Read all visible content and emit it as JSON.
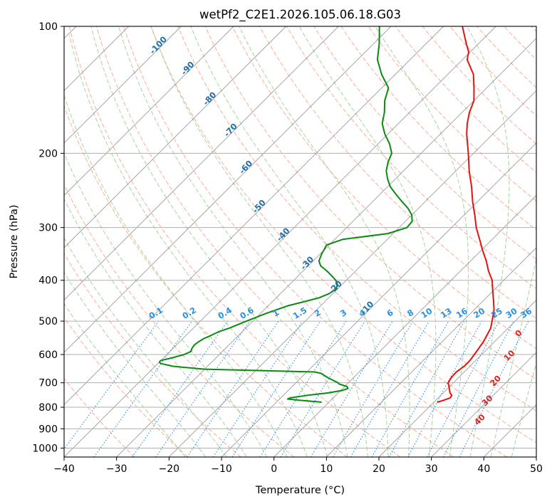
{
  "chart_data": {
    "type": "line",
    "title": "wetPf2_C2E1.2026.105.06.18.G03",
    "xlabel": "Temperature (°C)",
    "ylabel": "Pressure (hPa)",
    "xlim": [
      -40,
      50
    ],
    "ylim": [
      1050,
      100
    ],
    "y_scale": "log",
    "x_ticks": [
      -40,
      -30,
      -20,
      -10,
      0,
      10,
      20,
      30,
      40,
      50
    ],
    "y_ticks": [
      100,
      200,
      300,
      400,
      500,
      600,
      700,
      800,
      900,
      1000
    ],
    "skew_deg_per_log": 35,
    "grid": true,
    "series": [
      {
        "color": "#e8120c",
        "role": "temperature",
        "points": [
          [
            778,
            20.7
          ],
          [
            770,
            21.5
          ],
          [
            760,
            22.3
          ],
          [
            750,
            22.1
          ],
          [
            740,
            21.3
          ],
          [
            720,
            20.2
          ],
          [
            700,
            19.0
          ],
          [
            680,
            18.6
          ],
          [
            660,
            18.5
          ],
          [
            640,
            18.9
          ],
          [
            620,
            18.9
          ],
          [
            600,
            18.6
          ],
          [
            560,
            17.9
          ],
          [
            520,
            16.7
          ],
          [
            500,
            15.6
          ],
          [
            470,
            13.8
          ],
          [
            450,
            12.2
          ],
          [
            420,
            9.6
          ],
          [
            400,
            7.8
          ],
          [
            380,
            5.3
          ],
          [
            360,
            3.0
          ],
          [
            340,
            0.3
          ],
          [
            320,
            -2.4
          ],
          [
            300,
            -5.3
          ],
          [
            280,
            -8.0
          ],
          [
            260,
            -11.0
          ],
          [
            240,
            -14.0
          ],
          [
            220,
            -17.5
          ],
          [
            200,
            -21.0
          ],
          [
            180,
            -25.0
          ],
          [
            170,
            -26.9
          ],
          [
            160,
            -28.6
          ],
          [
            150,
            -30.0
          ],
          [
            140,
            -32.4
          ],
          [
            130,
            -35.1
          ],
          [
            120,
            -39.1
          ],
          [
            115,
            -40.3
          ],
          [
            110,
            -42.3
          ],
          [
            100,
            -46.4
          ]
        ]
      },
      {
        "color": "#0b8a10",
        "role": "dewpoint",
        "points": [
          [
            778,
            -1.5
          ],
          [
            770,
            -6.0
          ],
          [
            765,
            -8.5
          ],
          [
            760,
            -8.2
          ],
          [
            750,
            -5.5
          ],
          [
            740,
            -2.0
          ],
          [
            730,
            0.3
          ],
          [
            722,
            1.0
          ],
          [
            715,
            0.5
          ],
          [
            705,
            -1.5
          ],
          [
            700,
            -2.0
          ],
          [
            690,
            -3.5
          ],
          [
            680,
            -5.0
          ],
          [
            665,
            -7.0
          ],
          [
            660,
            -8.5
          ],
          [
            650,
            -30.0
          ],
          [
            640,
            -36.5
          ],
          [
            630,
            -39.5
          ],
          [
            625,
            -40.0
          ],
          [
            620,
            -40.0
          ],
          [
            610,
            -38.2
          ],
          [
            600,
            -36.7
          ],
          [
            590,
            -36.0
          ],
          [
            580,
            -36.4
          ],
          [
            570,
            -36.6
          ],
          [
            560,
            -36.4
          ],
          [
            550,
            -36.0
          ],
          [
            540,
            -35.2
          ],
          [
            530,
            -34.5
          ],
          [
            520,
            -33.2
          ],
          [
            500,
            -31.2
          ],
          [
            480,
            -29.0
          ],
          [
            460,
            -26.3
          ],
          [
            450,
            -24.0
          ],
          [
            440,
            -21.8
          ],
          [
            430,
            -20.7
          ],
          [
            420,
            -20.3
          ],
          [
            410,
            -20.8
          ],
          [
            400,
            -22.0
          ],
          [
            390,
            -23.7
          ],
          [
            380,
            -25.5
          ],
          [
            370,
            -27.6
          ],
          [
            360,
            -28.9
          ],
          [
            350,
            -29.5
          ],
          [
            345,
            -29.8
          ],
          [
            340,
            -30.0
          ],
          [
            330,
            -30.5
          ],
          [
            320,
            -28.5
          ],
          [
            310,
            -21.0
          ],
          [
            300,
            -18.5
          ],
          [
            290,
            -18.7
          ],
          [
            280,
            -20.0
          ],
          [
            270,
            -22.0
          ],
          [
            260,
            -24.5
          ],
          [
            250,
            -27.0
          ],
          [
            240,
            -29.5
          ],
          [
            230,
            -31.5
          ],
          [
            220,
            -33.3
          ],
          [
            210,
            -34.6
          ],
          [
            200,
            -35.6
          ],
          [
            190,
            -37.8
          ],
          [
            180,
            -40.6
          ],
          [
            170,
            -43.1
          ],
          [
            160,
            -44.8
          ],
          [
            150,
            -47.0
          ],
          [
            140,
            -48.7
          ],
          [
            130,
            -52.6
          ],
          [
            120,
            -56.2
          ],
          [
            110,
            -58.9
          ],
          [
            100,
            -62.2
          ]
        ]
      }
    ],
    "mixing_ratio_labels": [
      "0.1",
      "0.2",
      "0.4",
      "0.6",
      "1",
      "1.5",
      "2",
      "3",
      "4",
      "6",
      "8",
      "10",
      "13",
      "16",
      "20",
      "25",
      "30",
      "36"
    ],
    "dry_adiabat_labels": [
      "-100",
      "-90",
      "-80",
      "-70",
      "-60",
      "-50",
      "-40",
      "-30",
      "-20",
      "-10"
    ],
    "moist_adiabat_labels": [
      "0",
      "10",
      "20",
      "30",
      "40"
    ],
    "colors": {
      "temperature": "#e8120c",
      "dewpoint": "#0b8a10",
      "grid": "#b0b0b0",
      "isotherm": "#8c8c8c",
      "dry_adiabat": "#f7a084",
      "moist_adiabat": "#9ccf95",
      "mixing_ratio": "#2b8fe8",
      "dry_label": "#1f6fa8",
      "moist_label": "#d62728",
      "zero_label": "#808080"
    }
  }
}
